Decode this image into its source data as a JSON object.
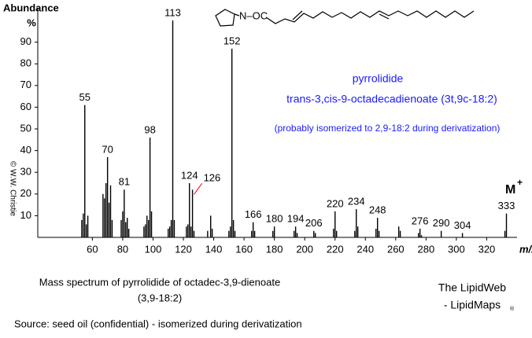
{
  "chart_data": {
    "type": "bar",
    "y_axis_title": "Abundance",
    "y_unit": "%",
    "x_axis_title": "m/z",
    "structure_label": "N–OC",
    "annotations": [
      "pyrrolidide",
      "trans-3,cis-9-octadecadienoate  (3t,9c-18:2)",
      "(probably isomerized to 2,9-18:2 during derivatization)"
    ],
    "copyright": "© W.W. Christie",
    "molecular_ion": {
      "label": "M",
      "sup": "+"
    },
    "caption": [
      "Mass spectrum of pyrrolidide of octadec-3,9-dienoate",
      "(3,9-18:2)"
    ],
    "brand": [
      "The LipidWeb",
      "- LipidMaps",
      "®"
    ],
    "source": "Source:  seed oil (confidential) - isomerized during derivatization",
    "color": "#000000",
    "xlim": [
      24,
      340
    ],
    "ylim": [
      0,
      100
    ],
    "xticks": [
      60,
      80,
      100,
      120,
      140,
      160,
      180,
      200,
      220,
      240,
      260,
      280,
      300,
      320
    ],
    "yticks": [
      10,
      20,
      30,
      40,
      50,
      60,
      70,
      80,
      90
    ],
    "x": [
      53,
      54,
      55,
      56,
      57,
      67,
      68,
      69,
      70,
      71,
      72,
      73,
      79,
      80,
      81,
      82,
      83,
      84,
      94,
      95,
      96,
      97,
      98,
      99,
      110,
      111,
      112,
      113,
      114,
      122,
      123,
      124,
      125,
      126,
      127,
      136,
      138,
      139,
      150,
      151,
      152,
      153,
      154,
      165,
      166,
      167,
      179,
      180,
      193,
      194,
      195,
      206,
      207,
      219,
      220,
      221,
      233,
      234,
      235,
      247,
      248,
      249,
      262,
      263,
      275,
      276,
      277,
      290,
      304,
      332,
      333
    ],
    "values": [
      8,
      11,
      61,
      6,
      10,
      20,
      18,
      25,
      37,
      16,
      24,
      8,
      8,
      12,
      22,
      7,
      9,
      4,
      5,
      6,
      10,
      8,
      46,
      12,
      4,
      5,
      8,
      100,
      8,
      5,
      6,
      25,
      5,
      22,
      3,
      3,
      10,
      4,
      3,
      5,
      87,
      8,
      3,
      3,
      7,
      3,
      3,
      5,
      3,
      5,
      2,
      3,
      2,
      4,
      12,
      3,
      3,
      13,
      5,
      4,
      9,
      3,
      5,
      3,
      2,
      4,
      1,
      3,
      2,
      3,
      11
    ],
    "peak_labels": [
      {
        "mz": 55
      },
      {
        "mz": 70
      },
      {
        "mz": 81
      },
      {
        "mz": 98
      },
      {
        "mz": 113
      },
      {
        "mz": 124
      },
      {
        "mz": 126,
        "callout_color": "#ff0000"
      },
      {
        "mz": 152
      },
      {
        "mz": 166
      },
      {
        "mz": 180
      },
      {
        "mz": 194
      },
      {
        "mz": 206
      },
      {
        "mz": 220
      },
      {
        "mz": 234
      },
      {
        "mz": 248
      },
      {
        "mz": 276
      },
      {
        "mz": 290
      },
      {
        "mz": 304
      },
      {
        "mz": 333
      }
    ]
  }
}
